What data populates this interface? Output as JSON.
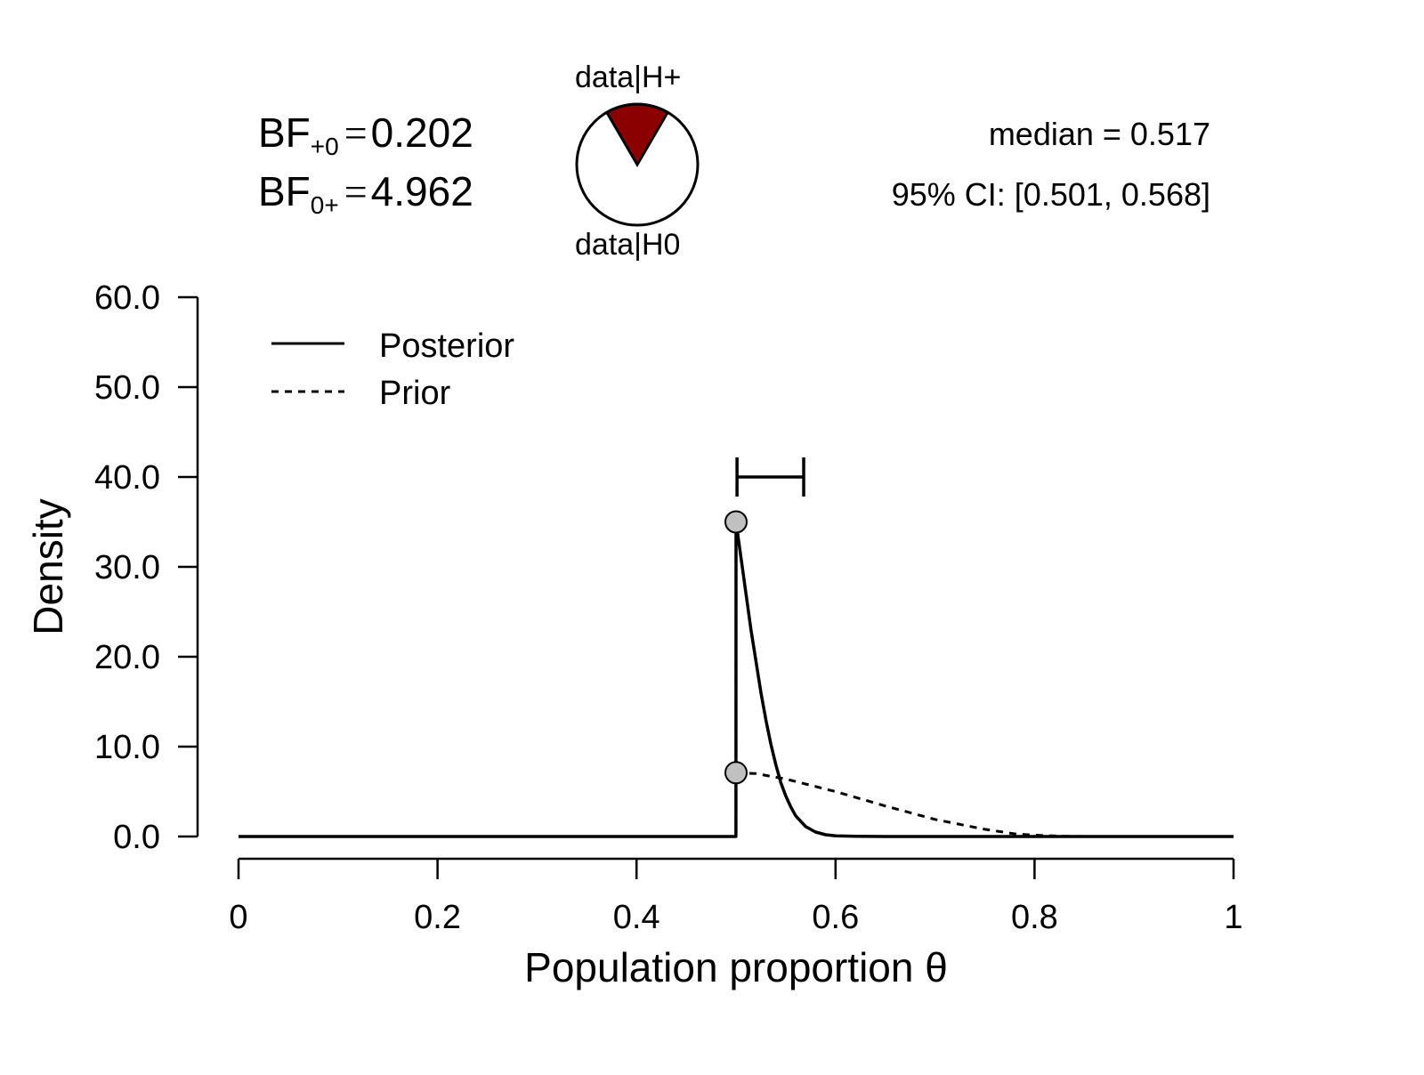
{
  "bayes_factors": {
    "bf_plus0": {
      "label": "BF",
      "subscript": "+0",
      "value": "0.202"
    },
    "bf_0plus": {
      "label": "BF",
      "subscript": "0+",
      "value": "4.962"
    }
  },
  "pie": {
    "top_label": "data|H+",
    "bottom_label": "data|H0",
    "h_plus_fraction": 0.168,
    "h_plus_color": "#8b0000",
    "h0_color": "#ffffff"
  },
  "summary": {
    "median_text": "median = 0.517",
    "ci_text": "95% CI: [0.501, 0.568]"
  },
  "chart_data": {
    "type": "line",
    "xlabel": "Population proportion θ",
    "ylabel": "Density",
    "xlim": [
      0,
      1
    ],
    "ylim": [
      0,
      60
    ],
    "x_ticks": [
      "0",
      "0.2",
      "0.4",
      "0.6",
      "0.8",
      "1"
    ],
    "x_tick_values": [
      0,
      0.2,
      0.4,
      0.6,
      0.8,
      1
    ],
    "y_ticks": [
      "0.0",
      "10.0",
      "20.0",
      "30.0",
      "40.0",
      "50.0",
      "60.0"
    ],
    "y_tick_values": [
      0,
      10,
      20,
      30,
      40,
      50,
      60
    ],
    "legend": {
      "position": "top-left",
      "entries": [
        "Posterior",
        "Prior"
      ]
    },
    "credible_interval": {
      "lower": 0.501,
      "upper": 0.568,
      "y": 40
    },
    "points": [
      {
        "x": 0.5,
        "y": 35.0,
        "series": "Posterior"
      },
      {
        "x": 0.5,
        "y": 7.1,
        "series": "Prior"
      }
    ],
    "series": [
      {
        "name": "Posterior",
        "style": "solid",
        "x": [
          0,
          0.4999,
          0.5,
          0.505,
          0.51,
          0.515,
          0.52,
          0.525,
          0.53,
          0.535,
          0.54,
          0.545,
          0.55,
          0.555,
          0.56,
          0.57,
          0.58,
          0.59,
          0.6,
          0.62,
          0.65,
          1
        ],
        "y": [
          0,
          0,
          35.0,
          31.0,
          27.0,
          23.0,
          19.5,
          16.0,
          13.0,
          10.3,
          8.0,
          6.0,
          4.5,
          3.3,
          2.3,
          1.1,
          0.5,
          0.2,
          0.08,
          0.02,
          0,
          0
        ]
      },
      {
        "name": "Prior",
        "style": "dashed",
        "x": [
          0.5,
          0.52,
          0.55,
          0.6,
          0.65,
          0.7,
          0.75,
          0.78,
          0.8,
          0.83,
          0.85,
          1
        ],
        "y": [
          7.1,
          7.0,
          6.4,
          5.0,
          3.4,
          1.9,
          0.8,
          0.3,
          0.15,
          0.03,
          0,
          0
        ]
      }
    ]
  }
}
